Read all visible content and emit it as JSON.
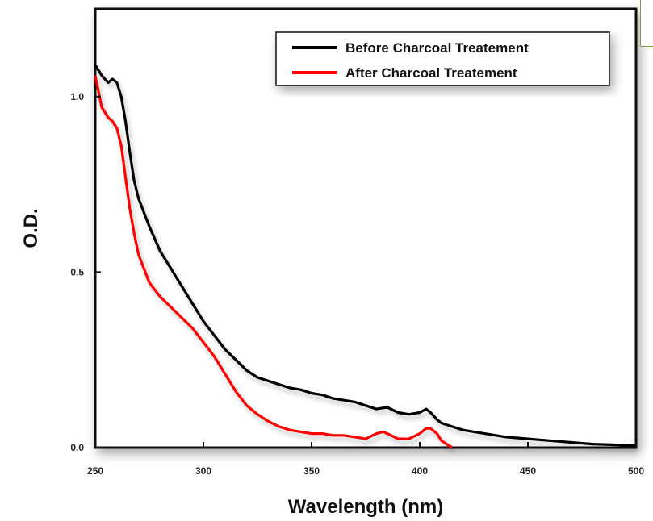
{
  "chart_data": {
    "type": "line",
    "title": "",
    "xlabel": "Wavelength (nm)",
    "ylabel": "O.D.",
    "xlim": [
      250,
      500
    ],
    "ylim": [
      0,
      1.25
    ],
    "x_ticks": [
      250,
      300,
      350,
      400,
      450,
      500
    ],
    "y_ticks": [
      0.0,
      0.5,
      1.0
    ],
    "x_tick_labels": [
      "250",
      "300",
      "350",
      "400",
      "450",
      "500"
    ],
    "y_tick_labels": [
      "0.0",
      "0.5",
      "1.0"
    ],
    "grid": false,
    "legend_position": "top-right",
    "series": [
      {
        "name": "Before Charcoal Treatement",
        "color": "#000000",
        "x": [
          250,
          253,
          256,
          258,
          260,
          262,
          264,
          266,
          268,
          270,
          275,
          280,
          285,
          290,
          295,
          300,
          305,
          310,
          315,
          320,
          325,
          330,
          335,
          340,
          345,
          350,
          355,
          360,
          365,
          370,
          375,
          380,
          385,
          390,
          395,
          400,
          403,
          405,
          408,
          410,
          415,
          420,
          430,
          440,
          450,
          460,
          470,
          480,
          490,
          500
        ],
        "values": [
          1.09,
          1.06,
          1.04,
          1.05,
          1.04,
          1.0,
          0.93,
          0.84,
          0.76,
          0.71,
          0.63,
          0.56,
          0.51,
          0.46,
          0.41,
          0.36,
          0.32,
          0.28,
          0.25,
          0.22,
          0.2,
          0.19,
          0.18,
          0.17,
          0.165,
          0.155,
          0.15,
          0.14,
          0.135,
          0.13,
          0.12,
          0.11,
          0.115,
          0.1,
          0.095,
          0.1,
          0.11,
          0.1,
          0.08,
          0.07,
          0.06,
          0.05,
          0.04,
          0.03,
          0.025,
          0.02,
          0.015,
          0.01,
          0.008,
          0.005
        ]
      },
      {
        "name": "After Charcoal Treatement",
        "color": "#ff0000",
        "x": [
          250,
          253,
          256,
          258,
          260,
          262,
          264,
          266,
          268,
          270,
          275,
          280,
          285,
          290,
          295,
          300,
          305,
          310,
          315,
          320,
          325,
          330,
          335,
          340,
          345,
          350,
          355,
          360,
          365,
          370,
          375,
          380,
          383,
          385,
          390,
          395,
          400,
          403,
          405,
          408,
          410,
          415
        ],
        "values": [
          1.06,
          0.97,
          0.94,
          0.93,
          0.91,
          0.86,
          0.77,
          0.68,
          0.61,
          0.55,
          0.47,
          0.43,
          0.4,
          0.37,
          0.34,
          0.3,
          0.26,
          0.21,
          0.16,
          0.12,
          0.095,
          0.075,
          0.06,
          0.05,
          0.045,
          0.04,
          0.04,
          0.035,
          0.035,
          0.03,
          0.025,
          0.04,
          0.045,
          0.04,
          0.025,
          0.025,
          0.04,
          0.055,
          0.055,
          0.04,
          0.02,
          0.0
        ]
      }
    ]
  }
}
